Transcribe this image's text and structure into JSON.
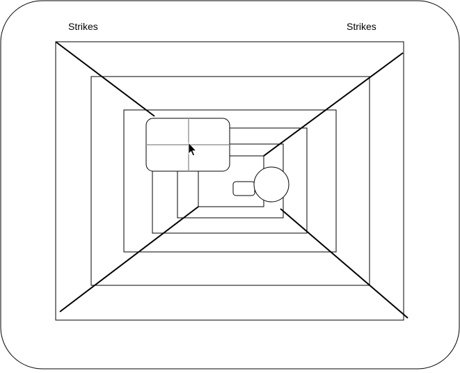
{
  "labels": {
    "left": "Strikes",
    "right": "Strikes"
  },
  "colors": {
    "background": "#ffffff",
    "stroke": "#000000",
    "crosshair": "#9a9a9a"
  },
  "icons": {
    "pointer": "mouse-pointer-icon"
  }
}
